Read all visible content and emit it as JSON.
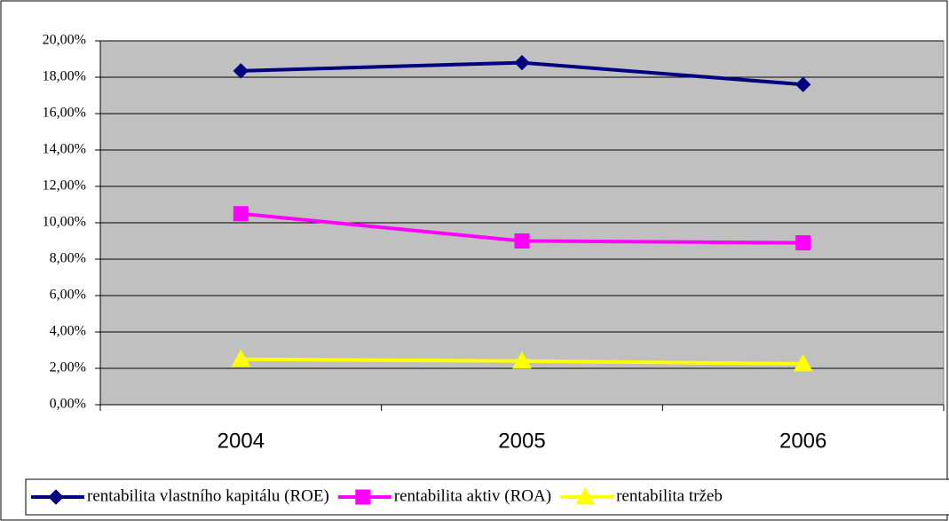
{
  "chart_data": {
    "type": "line",
    "categories": [
      "2004",
      "2005",
      "2006"
    ],
    "series": [
      {
        "name": "rentabilita vlastního kapitálu (ROE)",
        "color": "#000080",
        "marker": "diamond",
        "values": [
          18.35,
          18.8,
          17.6
        ]
      },
      {
        "name": "rentabilita aktiv (ROA)",
        "color": "#ff00ff",
        "marker": "square",
        "values": [
          10.5,
          9.0,
          8.9
        ]
      },
      {
        "name": "rentabilita tržeb",
        "color": "#ffff00",
        "marker": "triangle",
        "values": [
          2.5,
          2.4,
          2.25
        ]
      }
    ],
    "ylim": [
      0,
      20
    ],
    "yticks": [
      {
        "value": 0,
        "label": "0,00%"
      },
      {
        "value": 2,
        "label": "2,00%"
      },
      {
        "value": 4,
        "label": "4,00%"
      },
      {
        "value": 6,
        "label": "6,00%"
      },
      {
        "value": 8,
        "label": "8,00%"
      },
      {
        "value": 10,
        "label": "10,00%"
      },
      {
        "value": 12,
        "label": "12,00%"
      },
      {
        "value": 14,
        "label": "14,00%"
      },
      {
        "value": 16,
        "label": "16,00%"
      },
      {
        "value": 18,
        "label": "18,00%"
      },
      {
        "value": 20,
        "label": "20,00%"
      }
    ],
    "grid": true,
    "plot_background": "#c0c0c0",
    "legend": "bottom"
  }
}
